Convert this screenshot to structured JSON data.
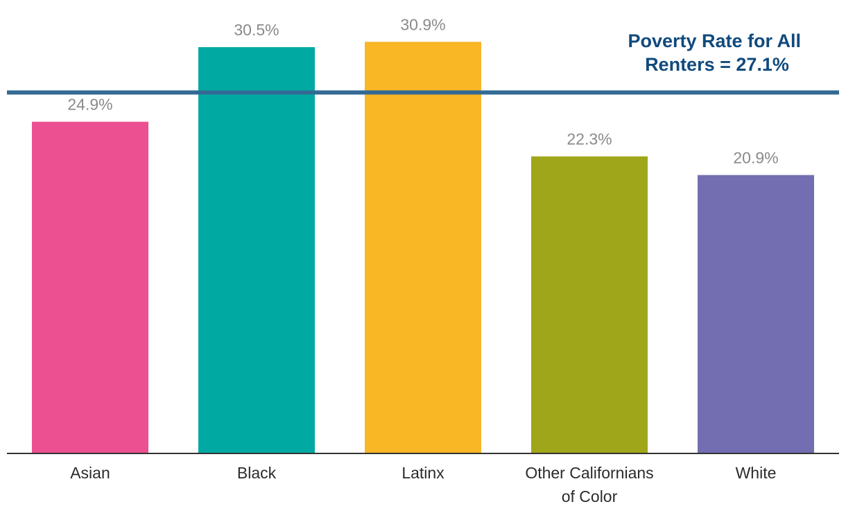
{
  "chart_data": {
    "type": "bar",
    "categories": [
      "Asian",
      "Black",
      "Latinx",
      "Other Californians of Color",
      "White"
    ],
    "category_lines": [
      [
        "Asian"
      ],
      [
        "Black"
      ],
      [
        "Latinx"
      ],
      [
        "Other Californians",
        "of Color"
      ],
      [
        "White"
      ]
    ],
    "values": [
      24.9,
      30.5,
      30.9,
      22.3,
      20.9
    ],
    "value_labels": [
      "24.9%",
      "30.5%",
      "30.9%",
      "22.3%",
      "20.9%"
    ],
    "colors": [
      "#EC5090",
      "#00AAA2",
      "#F9B625",
      "#A0A61A",
      "#726EB1"
    ],
    "ylim": [
      0,
      34.04
    ],
    "title": "",
    "xlabel": "",
    "ylabel": "",
    "grid": false,
    "reference_line": {
      "value": 27.1,
      "color": "#336A94",
      "label_lines": [
        "Poverty Rate for All",
        "Renters = 27.1%"
      ]
    },
    "label_color": "#8a8a8a",
    "axis_color": "#333333"
  }
}
